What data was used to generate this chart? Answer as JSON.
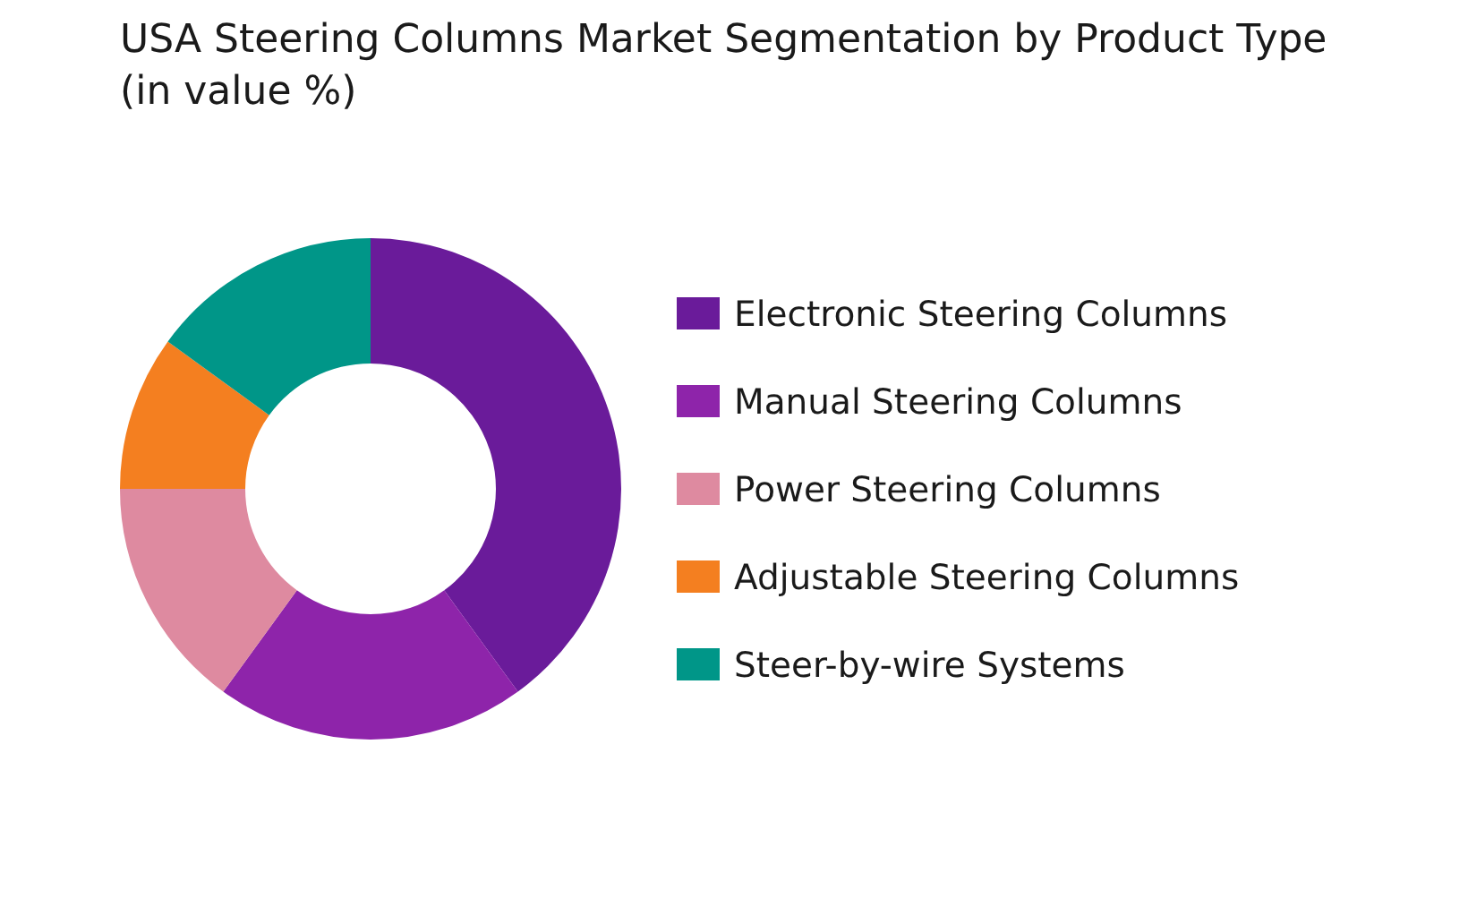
{
  "chart_data": {
    "type": "donut",
    "title": "USA Steering Columns Market Segmentation by Product Type (in value %)",
    "categories": [
      "Electronic Steering Columns",
      "Manual Steering Columns",
      "Power Steering Columns",
      "Adjustable Steering Columns",
      "Steer-by-wire Systems"
    ],
    "values": [
      40,
      20,
      15,
      10,
      15
    ],
    "colors": [
      "#6a1b9a",
      "#8e24aa",
      "#de8aa0",
      "#f47f20",
      "#009688"
    ],
    "legend": "right"
  }
}
